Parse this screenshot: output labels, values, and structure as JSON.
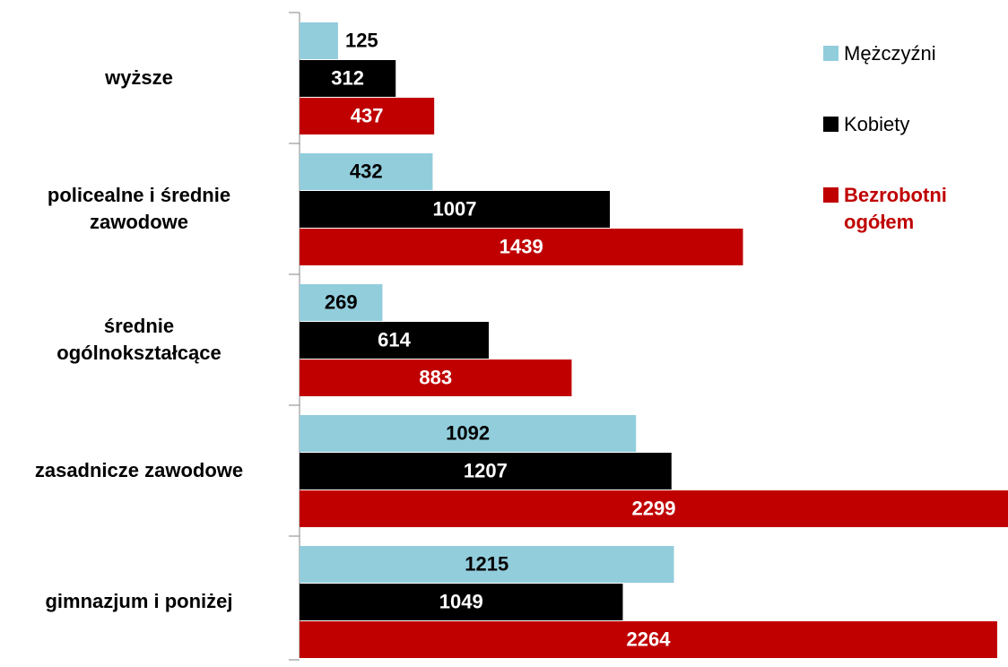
{
  "chart_data": {
    "type": "bar",
    "orientation": "horizontal",
    "categories": [
      "wyższe",
      "policealne i średnie zawodowe",
      "średnie ogólnokształcące",
      "zasadnicze zawodowe",
      "gimnazjum i poniżej"
    ],
    "series": [
      {
        "name": "Mężczyźni",
        "color": "#92cddc",
        "values": [
          125,
          432,
          269,
          1092,
          1215
        ]
      },
      {
        "name": "Kobiety",
        "color": "#000000",
        "values": [
          312,
          1007,
          614,
          1207,
          1049
        ]
      },
      {
        "name": "Bezrobotni ogółem",
        "color": "#c00000",
        "values": [
          437,
          1439,
          883,
          2299,
          2264
        ]
      }
    ],
    "legend": "right"
  }
}
